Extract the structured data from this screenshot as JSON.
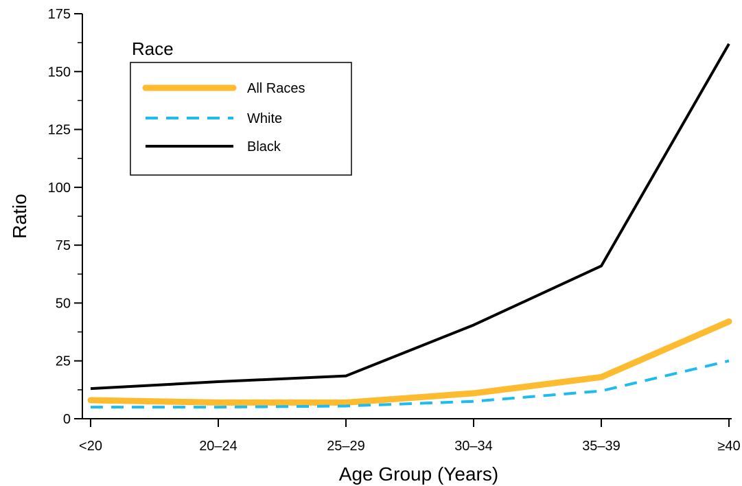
{
  "chart_data": {
    "type": "line",
    "categories": [
      "<20",
      "20–24",
      "25–29",
      "30–34",
      "35–39",
      "≥40"
    ],
    "xlabel": "Age Group (Years)",
    "ylabel": "Ratio",
    "ylim": [
      0,
      175
    ],
    "yticks": [
      0,
      25,
      50,
      75,
      100,
      125,
      150,
      175
    ],
    "grid": false,
    "legend": {
      "title": "Race",
      "placement": "top-left, boxed"
    },
    "series": [
      {
        "name": "All Races",
        "color": "#FDBB30",
        "style": "solid-thick",
        "values": [
          8,
          7,
          7,
          11,
          18,
          42
        ]
      },
      {
        "name": "White",
        "color": "#1EBBEE",
        "style": "dashed",
        "values": [
          5,
          5,
          5.5,
          7.5,
          12,
          25
        ]
      },
      {
        "name": "Black",
        "color": "#000000",
        "style": "solid",
        "values": [
          13,
          16,
          18.5,
          40.5,
          66,
          162
        ]
      }
    ]
  }
}
